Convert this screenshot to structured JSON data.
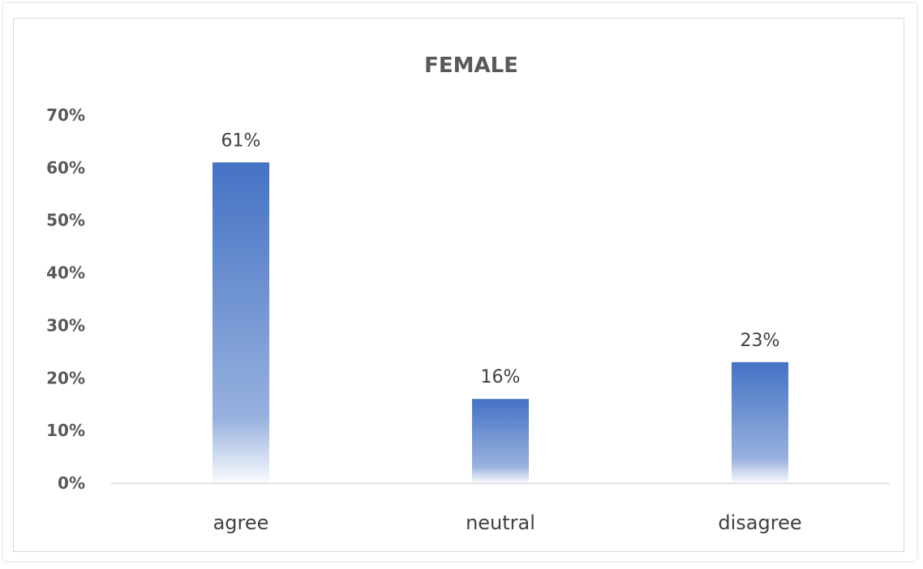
{
  "chart_data": {
    "type": "bar",
    "title": "FEMALE",
    "categories": [
      "agree",
      "neutral",
      "disagree"
    ],
    "values": [
      61,
      16,
      23
    ],
    "data_labels": [
      "61%",
      "16%",
      "23%"
    ],
    "y_ticks": [
      "0%",
      "10%",
      "20%",
      "30%",
      "40%",
      "50%",
      "60%",
      "70%"
    ],
    "ylim": [
      0,
      70
    ],
    "xlabel": "",
    "ylabel": "",
    "grid": false,
    "legend": "none",
    "colors": {
      "bar_top": "#4472c4",
      "bar_bottom": "#ffffff",
      "axis": "#d9d9d9"
    }
  }
}
